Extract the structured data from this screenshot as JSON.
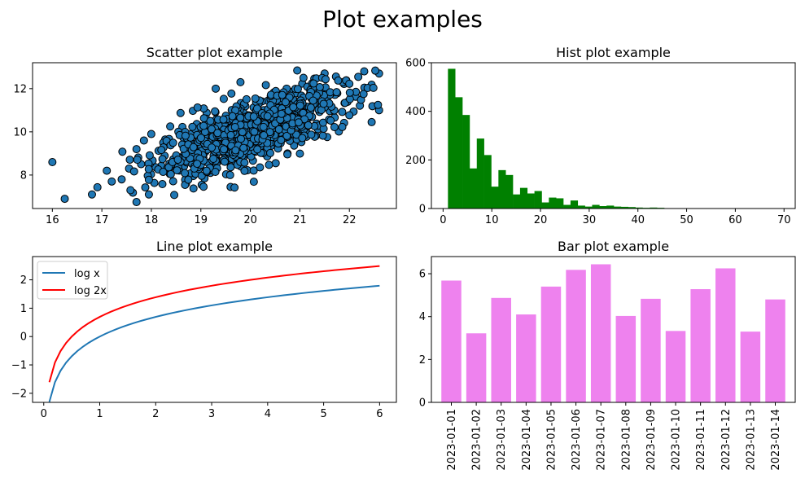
{
  "figure": {
    "title": "Plot examples"
  },
  "chart_data": [
    {
      "id": "scatter",
      "type": "scatter",
      "title": "Scatter plot example",
      "xlabel": "",
      "ylabel": "",
      "xlim": [
        15.6,
        22.95
      ],
      "ylim": [
        6.45,
        13.2
      ],
      "xticks": [
        16,
        17,
        18,
        19,
        20,
        21,
        22
      ],
      "yticks": [
        8,
        10,
        12
      ],
      "grid": false,
      "marker": {
        "face": "#1f77b4",
        "edge": "#000000"
      },
      "n_points": 1000,
      "trend": {
        "slope": 0.8,
        "intercept": -6.0,
        "x_mean": 20.0,
        "x_sd": 1.0,
        "noise_sd": 0.7
      },
      "points": [
        [
          16.0,
          8.6
        ],
        [
          16.25,
          6.9
        ],
        [
          16.8,
          7.1
        ],
        [
          17.1,
          8.2
        ],
        [
          17.2,
          7.7
        ],
        [
          17.4,
          7.8
        ],
        [
          17.55,
          8.3
        ],
        [
          17.7,
          6.75
        ],
        [
          17.95,
          7.1
        ],
        [
          17.7,
          9.2
        ],
        [
          17.85,
          9.6
        ],
        [
          19.6,
          7.45
        ],
        [
          22.6,
          12.7
        ],
        [
          22.6,
          11.0
        ],
        [
          22.3,
          12.8
        ],
        [
          21.5,
          12.7
        ],
        [
          19.8,
          12.3
        ],
        [
          19.3,
          12.0
        ],
        [
          22.45,
          10.45
        ],
        [
          20.75,
          9.0
        ],
        [
          18.7,
          7.6
        ]
      ]
    },
    {
      "id": "hist",
      "type": "bar",
      "title": "Hist plot example",
      "xlabel": "",
      "ylabel": "",
      "xlim": [
        -2.4,
        72.3
      ],
      "ylim": [
        0,
        600
      ],
      "xticks": [
        0,
        10,
        20,
        30,
        40,
        50,
        60,
        70
      ],
      "yticks": [
        0,
        200,
        400,
        600
      ],
      "color": "#008000",
      "bin_start": 1.0,
      "bin_width": 1.48,
      "counts": [
        575,
        458,
        385,
        165,
        288,
        220,
        90,
        158,
        138,
        58,
        85,
        62,
        72,
        25,
        45,
        42,
        15,
        33,
        12,
        8,
        15,
        10,
        12,
        8,
        7,
        6,
        4,
        3,
        4,
        3,
        0,
        0,
        0,
        0,
        0,
        0,
        0,
        0,
        0,
        0,
        0,
        0,
        0,
        0,
        0,
        0
      ]
    },
    {
      "id": "line",
      "type": "line",
      "title": "Line plot example",
      "xlabel": "",
      "ylabel": "",
      "xlim": [
        -0.2,
        6.3
      ],
      "ylim": [
        -2.32,
        2.82
      ],
      "xticks": [
        0,
        1,
        2,
        3,
        4,
        5,
        6
      ],
      "yticks": [
        -2,
        -1,
        0,
        1,
        2
      ],
      "tick_labels": {
        "x": [
          "0",
          "1",
          "2",
          "3",
          "4",
          "5",
          "6"
        ],
        "y": [
          "−2",
          "−1",
          "0",
          "1",
          "2"
        ]
      },
      "legend": "upper left",
      "x": {
        "start": 0.1,
        "end": 6.0,
        "n": 60
      },
      "series": [
        {
          "name": "log x",
          "func": "log(x)",
          "color": "#1f77b4"
        },
        {
          "name": "log 2x",
          "func": "log(2x)",
          "color": "#ff0000"
        }
      ]
    },
    {
      "id": "bar",
      "type": "bar",
      "title": "Bar plot example",
      "xlabel": "",
      "ylabel": "",
      "ylim": [
        0,
        6.8
      ],
      "yticks": [
        0,
        2,
        4,
        6
      ],
      "color": "#ee82ee",
      "categories": [
        "2023-01-01",
        "2023-01-02",
        "2023-01-03",
        "2023-01-04",
        "2023-01-05",
        "2023-01-06",
        "2023-01-07",
        "2023-01-08",
        "2023-01-09",
        "2023-01-10",
        "2023-01-11",
        "2023-01-12",
        "2023-01-13",
        "2023-01-14"
      ],
      "values": [
        5.68,
        3.22,
        4.87,
        4.1,
        5.4,
        6.18,
        6.44,
        4.03,
        4.83,
        3.33,
        5.28,
        6.25,
        3.3,
        4.8
      ]
    }
  ]
}
